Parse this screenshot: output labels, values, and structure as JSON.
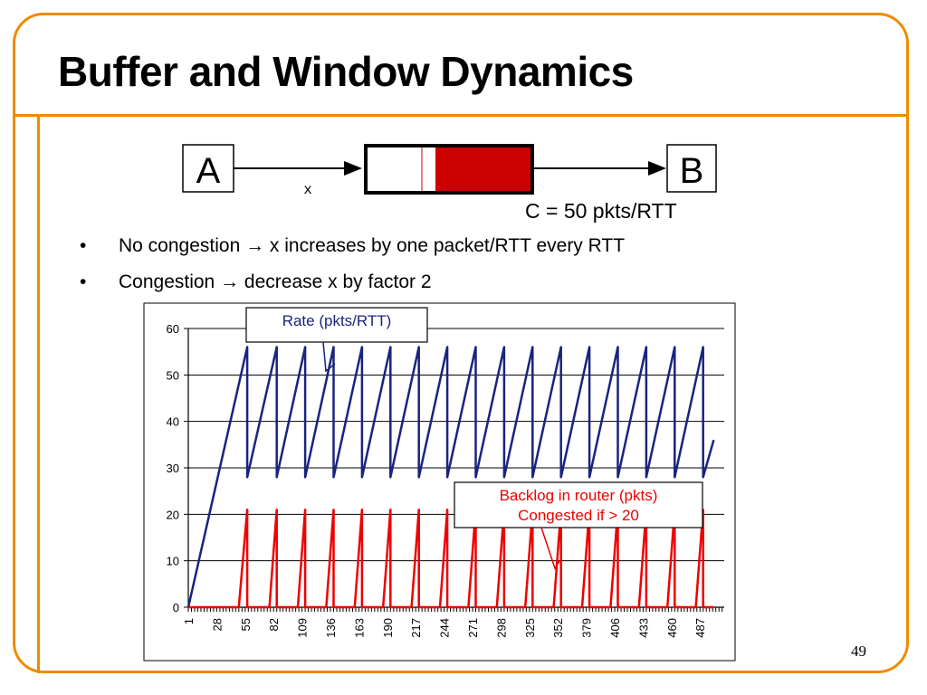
{
  "slide": {
    "title": "Buffer and Window Dynamics",
    "page_number": "49"
  },
  "diagram": {
    "node_a": "A",
    "node_b": "B",
    "link_label": "x",
    "capacity_label": "C = 50 pkts/RTT"
  },
  "bullets": [
    {
      "symbol": "•",
      "text": "No congestion → x increases by one packet/RTT every RTT"
    },
    {
      "symbol": "•",
      "text": "Congestion → decrease x by factor 2"
    }
  ],
  "colors": {
    "accent": "#f08a00",
    "rate": "#1a237e",
    "backlog": "#ee0000",
    "queue_fill": "#cc0000"
  },
  "chart_data": {
    "type": "line",
    "title": "",
    "xlabel": "",
    "ylabel": "",
    "ylim": [
      0,
      60
    ],
    "yticks": [
      0,
      10,
      20,
      30,
      40,
      50,
      60
    ],
    "x_range": [
      1,
      510
    ],
    "xtick_labels": [
      "1",
      "28",
      "55",
      "82",
      "109",
      "136",
      "163",
      "190",
      "217",
      "244",
      "271",
      "298",
      "325",
      "352",
      "379",
      "406",
      "433",
      "460",
      "487"
    ],
    "grid": "horizontal",
    "annotations": [
      {
        "series": "rate",
        "lines": [
          "Rate (pkts/RTT)"
        ]
      },
      {
        "series": "backlog",
        "lines": [
          "Backlog in router (pkts)",
          "Congested if > 20"
        ]
      }
    ],
    "series": [
      {
        "name": "rate",
        "note": "sawtooth: rises 1 pkt/RTT from 28 to 56, then halves to 28",
        "x": [
          1,
          57,
          57,
          85,
          85,
          112,
          112,
          139,
          139,
          166,
          166,
          193,
          193,
          220,
          220,
          247,
          247,
          274,
          274,
          301,
          301,
          328,
          328,
          355,
          355,
          382,
          382,
          409,
          409,
          436,
          436,
          463,
          463,
          490,
          490,
          500
        ],
        "values": [
          0,
          56,
          28,
          56,
          28,
          56,
          28,
          56,
          28,
          56,
          28,
          56,
          28,
          56,
          28,
          56,
          28,
          56,
          28,
          56,
          28,
          56,
          28,
          56,
          28,
          56,
          28,
          56,
          28,
          56,
          28,
          56,
          28,
          56,
          28,
          36
        ]
      },
      {
        "name": "backlog",
        "note": "router queue: zero while rate < 50, grows to ~21 just before each halving",
        "x": [
          1,
          49,
          57,
          57,
          78,
          85,
          85,
          105,
          112,
          112,
          132,
          139,
          139,
          159,
          166,
          166,
          186,
          193,
          193,
          213,
          220,
          220,
          240,
          247,
          247,
          267,
          274,
          274,
          294,
          301,
          301,
          321,
          328,
          328,
          348,
          355,
          355,
          375,
          382,
          382,
          402,
          409,
          409,
          429,
          436,
          436,
          456,
          463,
          463,
          483,
          490,
          490,
          500
        ],
        "values": [
          0,
          0,
          21,
          0,
          0,
          21,
          0,
          0,
          21,
          0,
          0,
          21,
          0,
          0,
          21,
          0,
          0,
          21,
          0,
          0,
          21,
          0,
          0,
          21,
          0,
          0,
          21,
          0,
          0,
          21,
          0,
          0,
          21,
          0,
          0,
          21,
          0,
          0,
          21,
          0,
          0,
          21,
          0,
          0,
          21,
          0,
          0,
          21,
          0,
          0,
          21,
          0,
          0
        ]
      }
    ]
  }
}
